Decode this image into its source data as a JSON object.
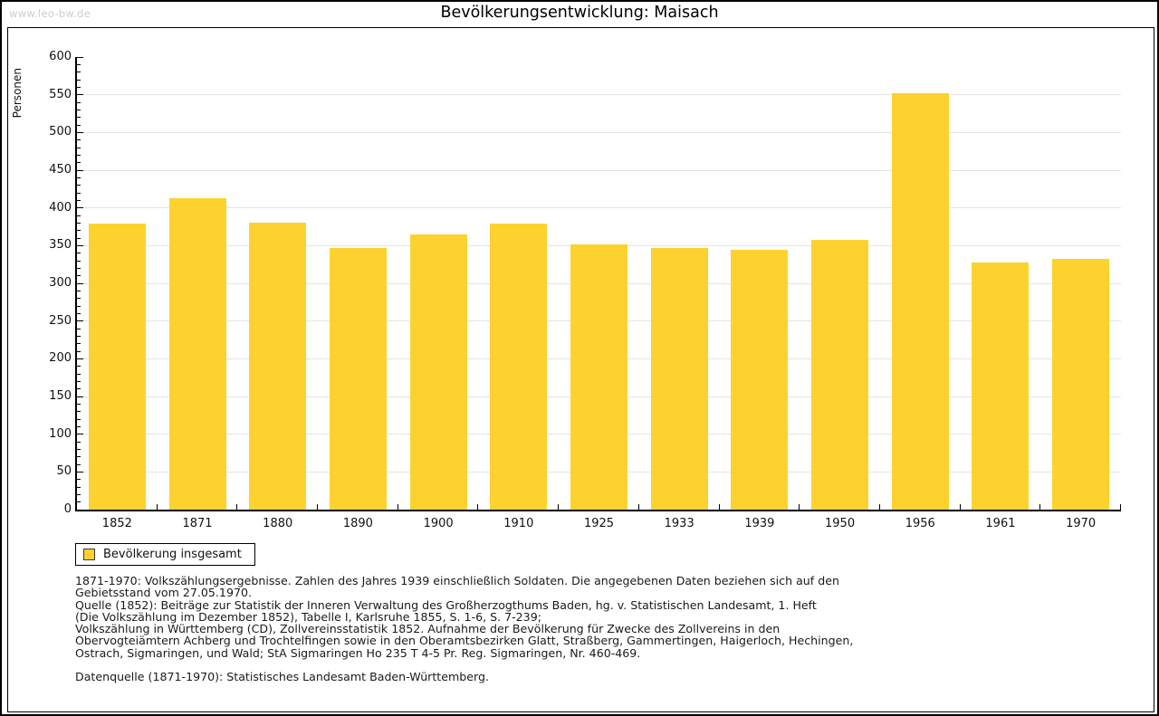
{
  "page": {
    "watermark": "www.leo-bw.de",
    "title": "Bevölkerungsentwicklung: Maisach"
  },
  "chart_data": {
    "type": "bar",
    "title": "Bevölkerungsentwicklung: Maisach",
    "xlabel": "",
    "ylabel": "Personen",
    "ylim": [
      0,
      600
    ],
    "ytick_step": 50,
    "minor_tick_step": 10,
    "grid": true,
    "legend_position": "bottom-left",
    "categories": [
      "1852",
      "1871",
      "1880",
      "1890",
      "1900",
      "1910",
      "1925",
      "1933",
      "1939",
      "1950",
      "1956",
      "1961",
      "1970"
    ],
    "series": [
      {
        "name": "Bevölkerung insgesamt",
        "values": [
          379,
          413,
          380,
          347,
          365,
          379,
          352,
          347,
          344,
          358,
          552,
          328,
          332
        ]
      }
    ],
    "bar_color": "#FDD22F",
    "grid_color": "#E4E4E4",
    "axis_color": "#000000"
  },
  "legend": {
    "label": "Bevölkerung insgesamt",
    "swatch_color": "#FDD22F"
  },
  "footnotes": {
    "para1": "1871-1970: Volkszählungsergebnisse. Zahlen des Jahres 1939 einschließlich Soldaten. Die angegebenen Daten beziehen sich auf den\nGebietsstand vom 27.05.1970.",
    "para2": "Quelle (1852): Beiträge zur Statistik der Inneren Verwaltung des Großherzogthums Baden, hg. v. Statistischen Landesamt, 1. Heft\n(Die Volkszählung im Dezember 1852), Tabelle I, Karlsruhe 1855, S. 1-6, S. 7-239;\nVolkszählung in Württemberg (CD), Zollvereinsstatistik 1852. Aufnahme der Bevölkerung für Zwecke des Zollvereins in den\nObervogteiämtern Achberg und Trochtelfingen sowie in den Oberamtsbezirken Glatt, Straßberg, Gammertingen, Haigerloch, Hechingen,\nOstrach, Sigmaringen, und Wald; StA Sigmaringen Ho 235 T 4-5 Pr. Reg. Sigmaringen, Nr. 460-469.",
    "para3": "Datenquelle (1871-1970): Statistisches Landesamt Baden-Württemberg."
  }
}
